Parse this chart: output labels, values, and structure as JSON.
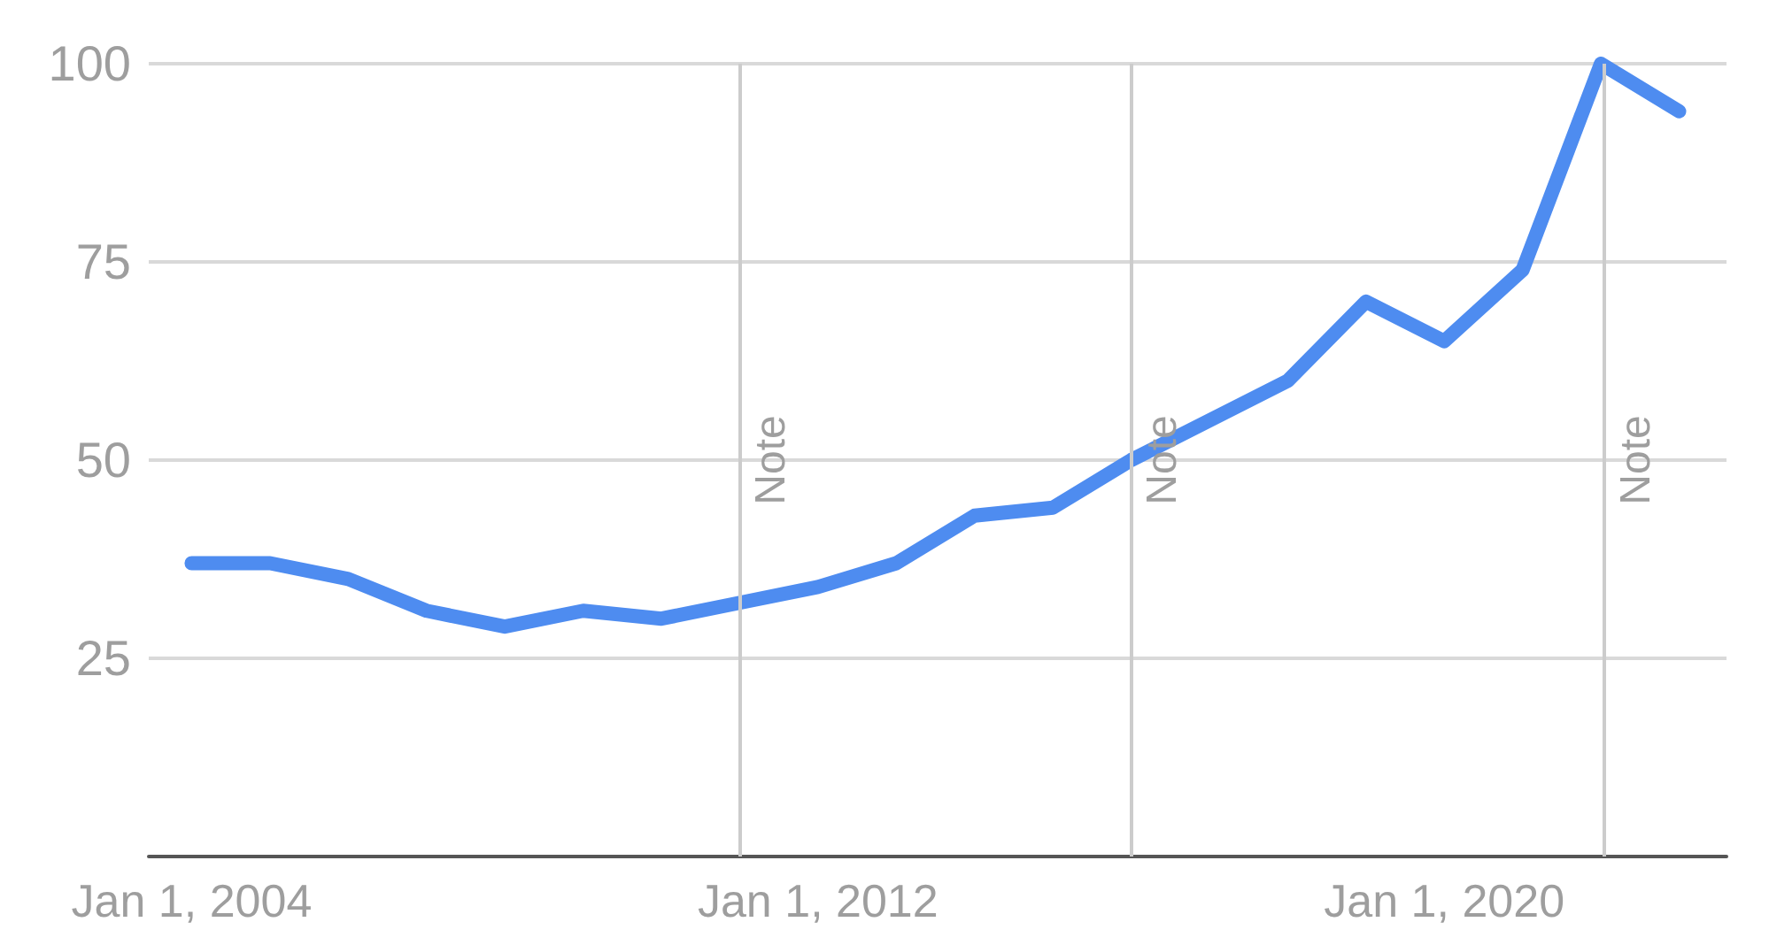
{
  "chart_data": {
    "type": "line",
    "x": [
      "2004-01-01",
      "2005-01-01",
      "2006-01-01",
      "2007-01-01",
      "2008-01-01",
      "2009-01-01",
      "2010-01-01",
      "2011-01-01",
      "2012-01-01",
      "2013-01-01",
      "2014-01-01",
      "2015-01-01",
      "2016-01-01",
      "2017-01-01",
      "2018-01-01",
      "2019-01-01",
      "2020-01-01",
      "2021-01-01",
      "2022-01-01",
      "2023-01-01"
    ],
    "series": [
      {
        "color": "#4e8cf0",
        "values": [
          37,
          37,
          35,
          31,
          29,
          31,
          30,
          32,
          34,
          37,
          43,
          44,
          50,
          55,
          60,
          70,
          65,
          74,
          100,
          94
        ]
      }
    ],
    "xlim": [
      "2003-06-15",
      "2023-08-10"
    ],
    "xticks": [
      {
        "value": "2004-01-01",
        "label": "Jan 1, 2004"
      },
      {
        "value": "2012-01-01",
        "label": "Jan 1, 2012"
      },
      {
        "value": "2020-01-01",
        "label": "Jan 1, 2020"
      }
    ],
    "ylim": [
      0,
      100
    ],
    "yticks": [
      25,
      50,
      75,
      100
    ],
    "grid": "y",
    "marker": "none",
    "line_style": "solid",
    "ref_lines": [
      {
        "axis": "x",
        "value": "2011-01-01",
        "label": "Note",
        "color": "#cccccc"
      },
      {
        "axis": "x",
        "value": "2016-01-01",
        "label": "Note",
        "color": "#cccccc"
      },
      {
        "axis": "x",
        "value": "2022-01-15",
        "label": "Note",
        "color": "#cccccc"
      }
    ]
  }
}
